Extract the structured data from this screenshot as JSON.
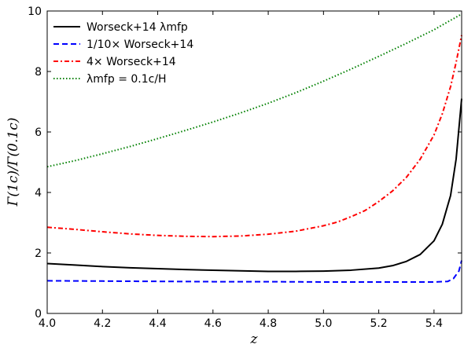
{
  "chart_data": {
    "type": "line",
    "xlabel": "z",
    "ylabel": "Γ(1c)/Γ(0.1c)",
    "xlim": [
      4.0,
      5.5
    ],
    "ylim": [
      0,
      10
    ],
    "xticks": [
      "4.0",
      "4.2",
      "4.4",
      "4.6",
      "4.8",
      "5.0",
      "5.2",
      "5.4"
    ],
    "yticks": [
      "0",
      "2",
      "4",
      "6",
      "8",
      "10"
    ],
    "grid": false,
    "legend_position": "top-left",
    "series": [
      {
        "name": "Worseck+14 λmfp",
        "color": "#000000",
        "style": "solid",
        "x": [
          4.0,
          4.1,
          4.2,
          4.3,
          4.4,
          4.5,
          4.6,
          4.7,
          4.8,
          4.9,
          5.0,
          5.1,
          5.2,
          5.25,
          5.3,
          5.35,
          5.4,
          5.43,
          5.46,
          5.48,
          5.5
        ],
        "y": [
          1.65,
          1.6,
          1.55,
          1.51,
          1.48,
          1.45,
          1.43,
          1.41,
          1.39,
          1.39,
          1.4,
          1.43,
          1.5,
          1.58,
          1.72,
          1.95,
          2.4,
          2.95,
          3.9,
          5.1,
          7.1
        ]
      },
      {
        "name": "1/10× Worseck+14",
        "color": "#0000ff",
        "style": "dashed",
        "x": [
          4.0,
          4.2,
          4.4,
          4.6,
          4.8,
          5.0,
          5.2,
          5.3,
          5.4,
          5.45,
          5.47,
          5.49,
          5.5
        ],
        "y": [
          1.08,
          1.07,
          1.06,
          1.05,
          1.05,
          1.04,
          1.04,
          1.04,
          1.04,
          1.06,
          1.15,
          1.4,
          1.75
        ]
      },
      {
        "name": "4× Worseck+14",
        "color": "#ff0000",
        "style": "dashdot",
        "x": [
          4.0,
          4.1,
          4.2,
          4.3,
          4.4,
          4.5,
          4.6,
          4.7,
          4.8,
          4.9,
          5.0,
          5.05,
          5.1,
          5.15,
          5.2,
          5.25,
          5.3,
          5.35,
          5.4,
          5.43,
          5.46,
          5.48,
          5.5
        ],
        "y": [
          2.85,
          2.78,
          2.7,
          2.63,
          2.58,
          2.55,
          2.54,
          2.56,
          2.62,
          2.72,
          2.9,
          3.02,
          3.2,
          3.4,
          3.7,
          4.05,
          4.5,
          5.1,
          5.9,
          6.6,
          7.5,
          8.3,
          9.2
        ]
      },
      {
        "name": "λmfp = 0.1c/H",
        "color": "#008000",
        "style": "dotted",
        "x": [
          4.0,
          4.1,
          4.2,
          4.3,
          4.4,
          4.5,
          4.6,
          4.7,
          4.8,
          4.9,
          5.0,
          5.1,
          5.2,
          5.3,
          5.4,
          5.5
        ],
        "y": [
          4.85,
          5.05,
          5.28,
          5.52,
          5.78,
          6.05,
          6.33,
          6.63,
          6.95,
          7.3,
          7.68,
          8.08,
          8.5,
          8.93,
          9.38,
          9.9
        ]
      }
    ]
  }
}
